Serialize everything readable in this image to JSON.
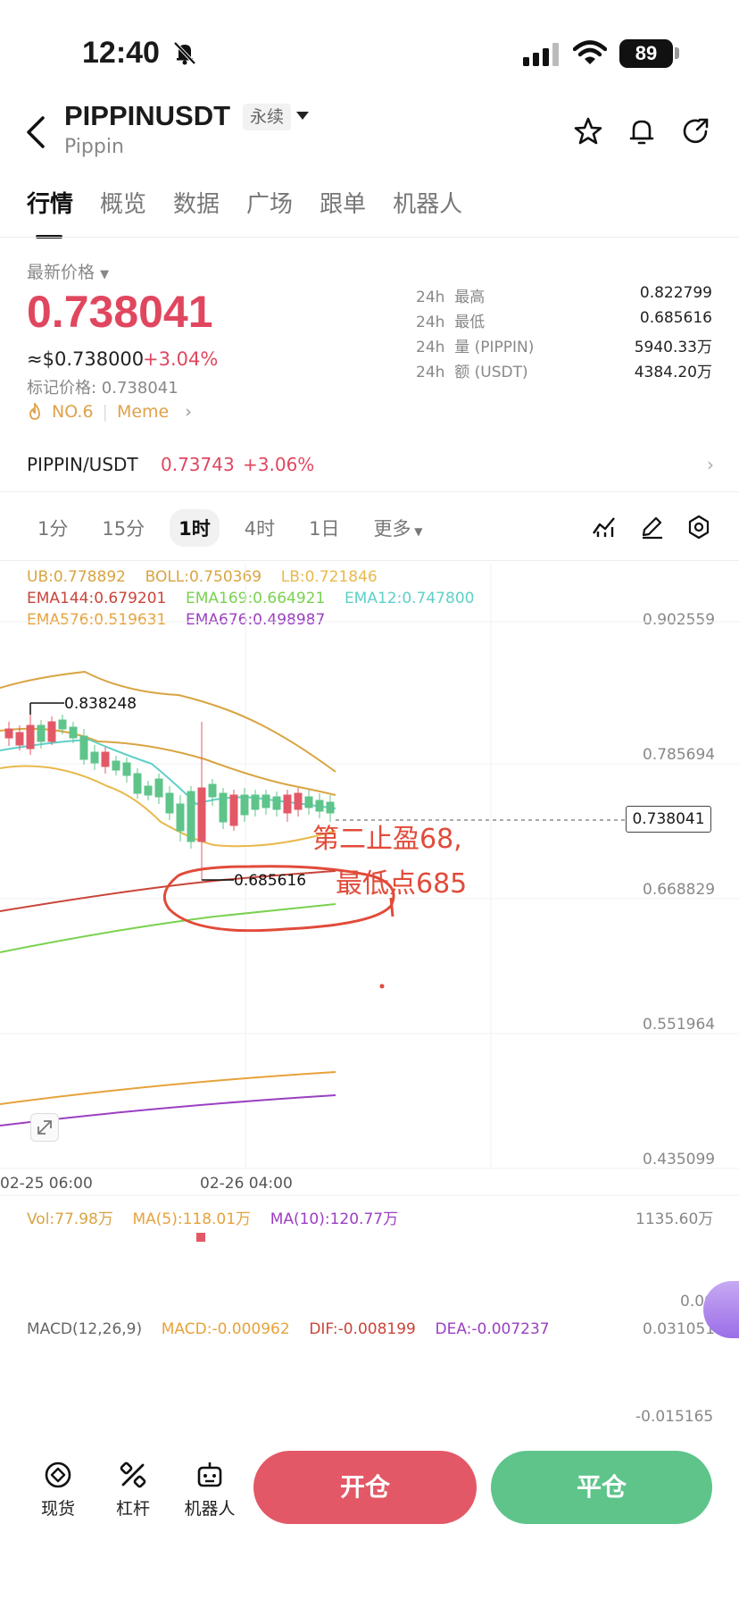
{
  "status_bar": {
    "time": "12:40",
    "battery": "89"
  },
  "header": {
    "symbol": "PIPPINUSDT",
    "contract_type": "永续",
    "name": "Pippin"
  },
  "tabs": [
    {
      "label": "行情",
      "active": true
    },
    {
      "label": "概览"
    },
    {
      "label": "数据"
    },
    {
      "label": "广场"
    },
    {
      "label": "跟单"
    },
    {
      "label": "机器人"
    }
  ],
  "price": {
    "latest_label": "最新价格",
    "value": "0.738041",
    "usd": "≈$0.738000",
    "change": "+3.04%",
    "mark_price": "标记价格: 0.738041",
    "rank": "NO.6",
    "tag": "Meme"
  },
  "stats": [
    {
      "period": "24h",
      "label": "最高",
      "value": "0.822799"
    },
    {
      "period": "24h",
      "label": "最低",
      "value": "0.685616"
    },
    {
      "period": "24h",
      "label": "量 (PIPPIN)",
      "value": "5940.33万"
    },
    {
      "period": "24h",
      "label": "额 (USDT)",
      "value": "4384.20万"
    }
  ],
  "spot": {
    "pair": "PIPPIN/USDT",
    "price": "0.73743",
    "change": "+3.06%"
  },
  "intervals": [
    {
      "label": "1分"
    },
    {
      "label": "15分"
    },
    {
      "label": "1时",
      "active": true
    },
    {
      "label": "4时"
    },
    {
      "label": "1日"
    },
    {
      "label": "更多"
    }
  ],
  "indicators": {
    "ub": "UB:0.778892",
    "boll": "BOLL:0.750369",
    "lb": "LB:0.721846",
    "ema144": "EMA144:0.679201",
    "ema169": "EMA169:0.664921",
    "ema12": "EMA12:0.747800",
    "ema576": "EMA576:0.519631",
    "ema676": "EMA676:0.498987"
  },
  "price_axis": [
    "0.902559",
    "0.785694",
    "0.668829",
    "0.551964",
    "0.435099"
  ],
  "current_price_tag": "0.738041",
  "chart_labels": {
    "high": "0.838248",
    "low": "0.685616"
  },
  "annotation": {
    "line1": "第二止盈68,",
    "line2": "最低点685"
  },
  "dates": [
    "02-25 06:00",
    "02-26 04:00"
  ],
  "volume": {
    "vol": "Vol:77.98万",
    "ma5": "MA(5):118.01万",
    "ma10": "MA(10):120.77万",
    "axis_top": "1135.60万",
    "axis_bottom": "0.00"
  },
  "macd": {
    "title": "MACD(12,26,9)",
    "macd": "MACD:-0.000962",
    "dif": "DIF:-0.008199",
    "dea": "DEA:-0.007237",
    "axis_top": "0.031051",
    "axis_bottom": "-0.015165"
  },
  "bottom_nav": [
    {
      "label": "现货",
      "icon": "spot-icon"
    },
    {
      "label": "杠杆",
      "icon": "leverage-icon"
    },
    {
      "label": "机器人",
      "icon": "robot-icon"
    }
  ],
  "actions": {
    "open": "开仓",
    "close": "平仓"
  },
  "colors": {
    "up": "#5ec48a",
    "down": "#e35866",
    "price_red": "#e0475f",
    "annotation": "#e14b3a"
  }
}
